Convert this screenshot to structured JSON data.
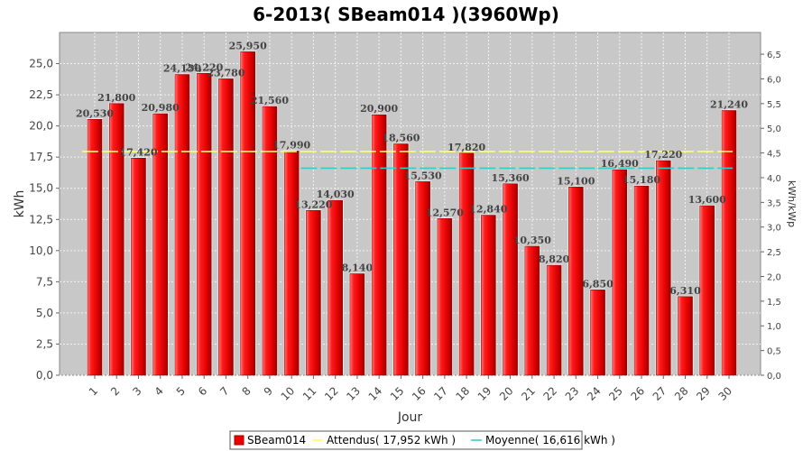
{
  "chart_data": {
    "type": "bar",
    "title": "6-2013( SBeam014 )(3960Wp)",
    "xlabel": "Jour",
    "ylabel": "kWh",
    "y2label": "kWh/kWp",
    "ylim": [
      0,
      27.5
    ],
    "y2lim": [
      0,
      6.94
    ],
    "yticks": [
      "0,0",
      "2,5",
      "5,0",
      "7,5",
      "10,0",
      "12,5",
      "15,0",
      "17,5",
      "20,0",
      "22,5",
      "25,0"
    ],
    "y2ticks": [
      "0,0",
      "0,5",
      "1,0",
      "1,5",
      "2,0",
      "2,5",
      "3,0",
      "3,5",
      "4,0",
      "4,5",
      "5,0",
      "5,5",
      "6,0",
      "6,5"
    ],
    "categories": [
      "1",
      "2",
      "3",
      "4",
      "5",
      "6",
      "7",
      "8",
      "9",
      "10",
      "11",
      "12",
      "13",
      "14",
      "15",
      "16",
      "17",
      "18",
      "19",
      "20",
      "21",
      "22",
      "23",
      "24",
      "25",
      "26",
      "27",
      "28",
      "29",
      "30"
    ],
    "series": [
      {
        "name": "SBeam014",
        "color": "#ee0000",
        "values": [
          20.53,
          21.8,
          17.42,
          20.98,
          24.13,
          24.22,
          23.78,
          25.95,
          21.56,
          17.99,
          13.22,
          14.03,
          8.14,
          20.9,
          18.56,
          15.53,
          12.57,
          17.82,
          12.84,
          15.36,
          10.35,
          8.82,
          15.1,
          6.85,
          16.49,
          15.18,
          17.22,
          6.31,
          13.6,
          21.24
        ],
        "labels": [
          "20,530",
          "21,800",
          "17,420",
          "20,980",
          "24,130",
          "24,220",
          "23,780",
          "25,950",
          "21,560",
          "17,990",
          "13,220",
          "14,030",
          "8,140",
          "20,900",
          "18,560",
          "15,530",
          "12,570",
          "17,820",
          "12,840",
          "15,360",
          "10,350",
          "8,820",
          "15,100",
          "6,850",
          "16,490",
          "15,180",
          "17,220",
          "6,310",
          "13,600",
          "21,240"
        ]
      }
    ],
    "reference_lines": [
      {
        "name": "Attendus( 17,952 kWh )",
        "value": 17.952,
        "color": "#ffff66",
        "start_category": 1
      },
      {
        "name": "Moyenne( 16,616 kWh )",
        "value": 16.616,
        "color": "#33cccc",
        "start_category": 11
      }
    ],
    "legend": {
      "position": "bottom",
      "items": [
        "SBeam014",
        "Attendus( 17,952 kWh )",
        "Moyenne( 16,616 kWh )"
      ]
    },
    "grid": true,
    "plot_background": "#c8c8c8"
  }
}
